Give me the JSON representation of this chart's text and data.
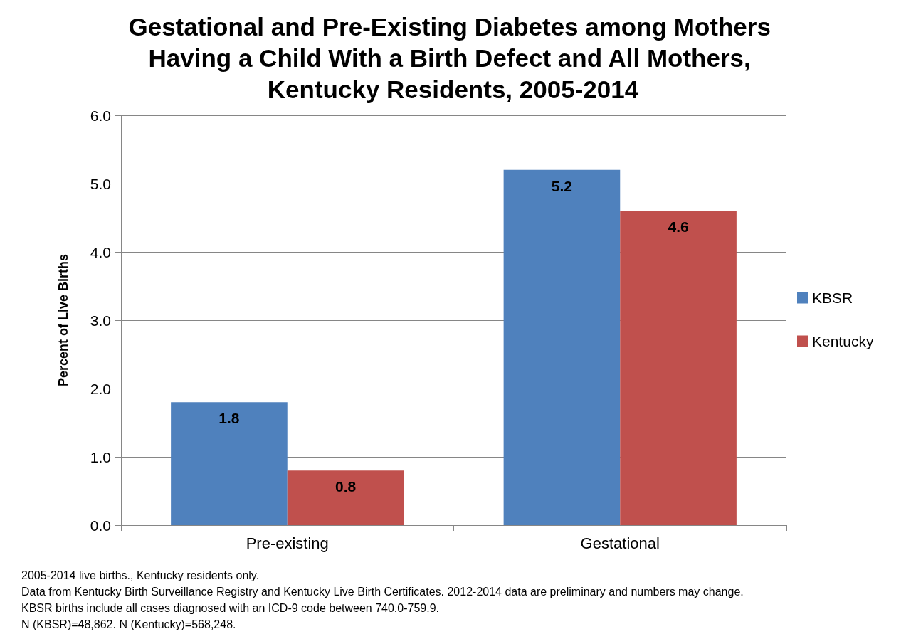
{
  "chart_data": {
    "type": "bar",
    "title": "Gestational and Pre-Existing Diabetes among Mothers Having a Child With a Birth Defect and All Mothers, Kentucky Residents, 2005-2014",
    "ylabel": "Percent of Live Births",
    "categories": [
      "Pre-existing",
      "Gestational"
    ],
    "series": [
      {
        "name": "KBSR",
        "color": "#4f81bd",
        "values": [
          1.8,
          5.2
        ]
      },
      {
        "name": "Kentucky",
        "color": "#c0504d",
        "values": [
          0.8,
          4.6
        ]
      }
    ],
    "ylim": [
      0,
      6
    ],
    "yticks": [
      {
        "value": 0,
        "label": "0.0"
      },
      {
        "value": 1,
        "label": "1.0"
      },
      {
        "value": 2,
        "label": "2.0"
      },
      {
        "value": 3,
        "label": "3.0"
      },
      {
        "value": 4,
        "label": "4.0"
      },
      {
        "value": 5,
        "label": "5.0"
      },
      {
        "value": 6,
        "label": "6.0"
      }
    ],
    "grid": "y",
    "legend": "right",
    "data_labels": true,
    "annotations": [
      "2005-2014 live births., Kentucky residents only.",
      "Data from Kentucky Birth Surveillance Registry and Kentucky Live Birth Certificates. 2012-2014 data are preliminary and numbers may change.",
      "KBSR births include all cases diagnosed with an ICD-9 code between 740.0-759.9.",
      "N (KBSR)=48,862. N (Kentucky)=568,248."
    ]
  }
}
